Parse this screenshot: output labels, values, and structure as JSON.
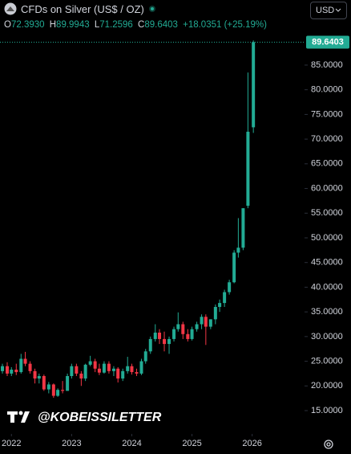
{
  "header": {
    "ohlc": [
      {
        "key": "O",
        "value": "72.3930"
      },
      {
        "key": "H",
        "value": "89.9943"
      },
      {
        "key": "L",
        "value": "71.2596"
      },
      {
        "key": "C",
        "value": "89.6403"
      }
    ],
    "change": "+18.0351 (+25.19%)",
    "currency": "USD",
    "watermark": "@KOBEISSILETTER"
  },
  "chart_data": {
    "type": "candlestick",
    "title": "CFDs on Silver (US$ / OZ)",
    "up_color": "#22ab94",
    "down_color": "#f23645",
    "x": [
      2021.85,
      2021.93,
      2022.0,
      2022.08,
      2022.16,
      2022.23,
      2022.31,
      2022.39,
      2022.46,
      2022.54,
      2022.62,
      2022.7,
      2022.77,
      2022.85,
      2022.93,
      2023.0,
      2023.08,
      2023.16,
      2023.23,
      2023.31,
      2023.39,
      2023.46,
      2023.54,
      2023.62,
      2023.7,
      2023.77,
      2023.85,
      2023.93,
      2024.0,
      2024.08,
      2024.16,
      2024.23,
      2024.31,
      2024.39,
      2024.46,
      2024.54,
      2024.62,
      2024.7,
      2024.77,
      2024.85,
      2024.93,
      2025.0,
      2025.08,
      2025.16,
      2025.23,
      2025.31,
      2025.39,
      2025.46,
      2025.54,
      2025.62,
      2025.7,
      2025.77,
      2025.85,
      2025.93,
      2026.02
    ],
    "open": [
      23.0,
      24.0,
      22.5,
      23.3,
      22.8,
      25.5,
      24.5,
      23.0,
      21.5,
      22.0,
      19.3,
      20.3,
      18.0,
      19.2,
      19.0,
      22.0,
      24.0,
      22.5,
      21.5,
      24.3,
      25.0,
      23.5,
      22.7,
      24.5,
      23.0,
      23.5,
      21.5,
      23.0,
      24.0,
      22.8,
      22.5,
      25.0,
      27.0,
      29.5,
      30.8,
      29.5,
      28.5,
      29.5,
      31.5,
      32.5,
      30.5,
      29.5,
      31.5,
      32.5,
      34.0,
      32.0,
      33.5,
      36.0,
      36.8,
      39.0,
      41.0,
      47.0,
      48.0,
      56.5,
      72.393
    ],
    "high": [
      24.5,
      24.8,
      23.8,
      24.5,
      26.5,
      26.9,
      25.0,
      23.5,
      22.5,
      22.3,
      20.8,
      20.5,
      19.5,
      21.0,
      22.5,
      24.5,
      24.5,
      23.0,
      24.5,
      26.1,
      25.5,
      24.5,
      25.0,
      25.0,
      24.0,
      23.8,
      23.5,
      25.9,
      24.5,
      23.5,
      25.5,
      27.5,
      30.0,
      32.5,
      31.5,
      31.0,
      30.0,
      32.0,
      34.9,
      33.0,
      31.5,
      32.0,
      33.0,
      34.5,
      34.5,
      33.5,
      36.5,
      37.5,
      39.5,
      41.5,
      47.5,
      54.0,
      56.0,
      83.5,
      89.9943
    ],
    "low": [
      22.5,
      22.0,
      22.0,
      22.2,
      22.5,
      24.0,
      22.5,
      20.5,
      20.5,
      19.0,
      18.5,
      17.6,
      17.8,
      18.5,
      19.0,
      21.5,
      22.0,
      20.0,
      21.0,
      24.0,
      22.8,
      22.2,
      22.5,
      22.5,
      22.0,
      20.7,
      21.0,
      22.5,
      22.3,
      22.0,
      22.2,
      24.5,
      26.5,
      29.0,
      28.5,
      27.0,
      26.5,
      29.0,
      31.0,
      29.5,
      29.0,
      29.2,
      31.0,
      31.5,
      28.3,
      31.5,
      32.5,
      35.0,
      36.0,
      38.5,
      40.8,
      46.0,
      47.5,
      56.0,
      71.2596
    ],
    "close": [
      24.0,
      22.5,
      23.3,
      22.8,
      25.5,
      24.5,
      23.0,
      21.5,
      22.0,
      19.3,
      20.3,
      18.0,
      19.2,
      19.0,
      22.0,
      24.0,
      22.5,
      21.5,
      24.3,
      25.0,
      23.5,
      22.7,
      24.5,
      23.0,
      23.5,
      21.5,
      23.0,
      24.0,
      22.8,
      22.5,
      25.0,
      27.0,
      29.5,
      30.8,
      29.5,
      28.5,
      29.5,
      31.5,
      32.5,
      30.5,
      29.5,
      31.5,
      32.5,
      34.0,
      32.0,
      33.5,
      36.0,
      36.8,
      39.0,
      41.0,
      47.0,
      48.0,
      56.0,
      71.5,
      89.6403
    ],
    "last_label": "89.6403",
    "xlim": [
      2021.81,
      2026.87
    ],
    "xticks": [
      2022,
      2023,
      2024,
      2025,
      2026
    ],
    "ylim": [
      10.28,
      91.67
    ],
    "yticks": [
      {
        "value": 15,
        "label": "15.0000"
      },
      {
        "value": 20,
        "label": "20.0000"
      },
      {
        "value": 25,
        "label": "25.0000"
      },
      {
        "value": 30,
        "label": "30.0000"
      },
      {
        "value": 35,
        "label": "35.0000"
      },
      {
        "value": 40,
        "label": "40.0000"
      },
      {
        "value": 45,
        "label": "45.0000"
      },
      {
        "value": 50,
        "label": "50.0000"
      },
      {
        "value": 55,
        "label": "55.0000"
      },
      {
        "value": 60,
        "label": "60.0000"
      },
      {
        "value": 65,
        "label": "65.0000"
      },
      {
        "value": 70,
        "label": "70.0000"
      },
      {
        "value": 75,
        "label": "75.0000"
      },
      {
        "value": 80,
        "label": "80.0000"
      },
      {
        "value": 85,
        "label": "85.0000"
      }
    ]
  }
}
